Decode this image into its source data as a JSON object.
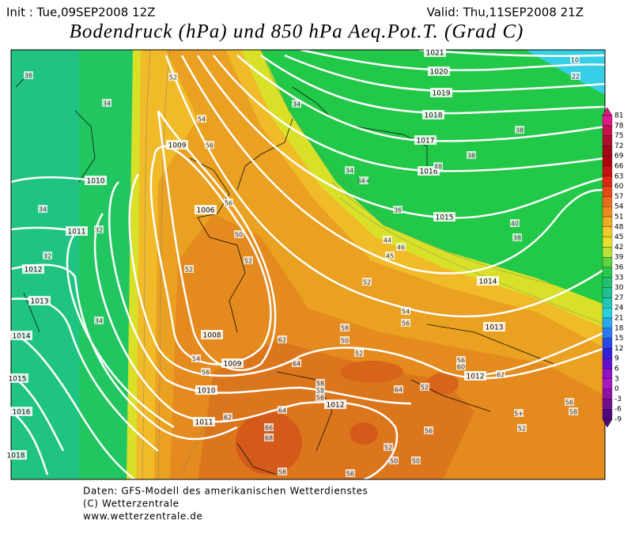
{
  "header": {
    "init": "Init : Tue,09SEP2008 12Z",
    "valid": "Valid: Thu,11SEP2008 21Z",
    "title": "Bodendruck (hPa) und 850 hPa Aeq.Pot.T. (Grad C)"
  },
  "colorbar": {
    "labels": [
      81,
      78,
      75,
      72,
      69,
      66,
      63,
      60,
      57,
      54,
      51,
      48,
      45,
      42,
      39,
      36,
      33,
      30,
      27,
      24,
      21,
      18,
      15,
      12,
      9,
      6,
      3,
      0,
      -3,
      -6,
      -9
    ]
  },
  "isobar_labels": [
    1021,
    1020,
    1019,
    1018,
    1017,
    1016,
    1015,
    1014,
    1013,
    1012,
    1012,
    1011,
    1010,
    1009,
    1008,
    1006,
    1009,
    1010,
    1011,
    1012,
    1013,
    1014,
    1015,
    1016,
    1018
  ],
  "theta_labels": [
    38,
    34,
    52,
    54,
    56,
    56,
    50,
    52,
    52,
    34,
    34,
    "34+",
    36,
    44,
    46,
    45,
    52,
    54,
    56,
    58,
    50,
    52,
    62,
    64,
    54,
    56,
    58,
    58,
    56,
    64,
    52,
    56,
    60,
    62,
    40,
    38,
    38,
    48,
    38,
    56,
    "5+",
    52,
    58,
    62,
    64,
    66,
    68,
    56,
    52,
    50,
    50,
    58,
    56,
    32,
    34,
    32,
    34,
    10,
    22
  ],
  "footer": {
    "source": "Daten: GFS-Modell des amerikanischen Wetterdienstes",
    "copyright": "(C) Wetterzentrale",
    "url": "www.wetterzentrale.de"
  }
}
